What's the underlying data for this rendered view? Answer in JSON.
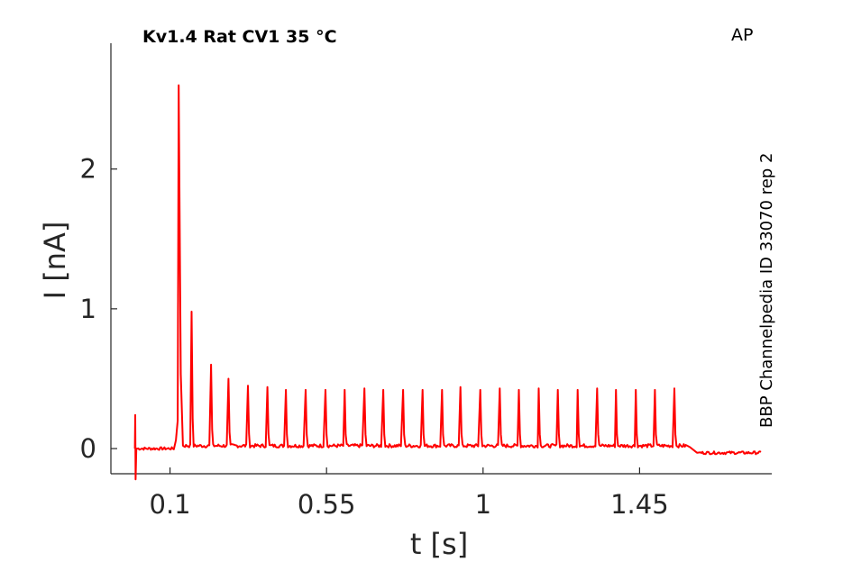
{
  "chart_data": {
    "type": "line",
    "title": "Kv1.4  Rat  CV1  35 °C",
    "protocol_label": "AP",
    "side_label": "BBP Channelpedia ID 33070 rep 2",
    "xlabel": "t [s]",
    "ylabel": "I [nA]",
    "xlim": [
      -0.07,
      1.83
    ],
    "ylim": [
      -0.18,
      2.9
    ],
    "xticks": [
      0.1,
      0.55,
      1,
      1.45
    ],
    "xtick_labels": [
      "0.1",
      "0.55",
      "1",
      "1.45"
    ],
    "yticks": [
      0,
      1,
      2
    ],
    "ytick_labels": [
      "0",
      "1",
      "2"
    ],
    "grid": false,
    "series": [
      {
        "color": "#ff0000",
        "baseline_start": 0.0,
        "baseline_plateau": 0.02,
        "baseline_end": -0.03,
        "stim_artifact": {
          "t": 0.0,
          "up": 0.24,
          "down": -0.22
        },
        "plateau_start": 0.125,
        "plateau_end": 1.585,
        "peaks": [
          {
            "t": 0.125,
            "i": 2.6
          },
          {
            "t": 0.162,
            "i": 0.98
          },
          {
            "t": 0.218,
            "i": 0.6
          },
          {
            "t": 0.268,
            "i": 0.5
          },
          {
            "t": 0.324,
            "i": 0.45
          },
          {
            "t": 0.38,
            "i": 0.44
          },
          {
            "t": 0.433,
            "i": 0.42
          },
          {
            "t": 0.49,
            "i": 0.42
          },
          {
            "t": 0.547,
            "i": 0.42
          },
          {
            "t": 0.602,
            "i": 0.42
          },
          {
            "t": 0.659,
            "i": 0.43
          },
          {
            "t": 0.713,
            "i": 0.42
          },
          {
            "t": 0.77,
            "i": 0.42
          },
          {
            "t": 0.826,
            "i": 0.42
          },
          {
            "t": 0.882,
            "i": 0.42
          },
          {
            "t": 0.935,
            "i": 0.44
          },
          {
            "t": 0.992,
            "i": 0.42
          },
          {
            "t": 1.048,
            "i": 0.43
          },
          {
            "t": 1.103,
            "i": 0.42
          },
          {
            "t": 1.16,
            "i": 0.43
          },
          {
            "t": 1.215,
            "i": 0.42
          },
          {
            "t": 1.272,
            "i": 0.42
          },
          {
            "t": 1.328,
            "i": 0.43
          },
          {
            "t": 1.382,
            "i": 0.42
          },
          {
            "t": 1.439,
            "i": 0.42
          },
          {
            "t": 1.494,
            "i": 0.42
          },
          {
            "t": 1.55,
            "i": 0.43
          }
        ],
        "t_end": 1.8
      }
    ]
  }
}
